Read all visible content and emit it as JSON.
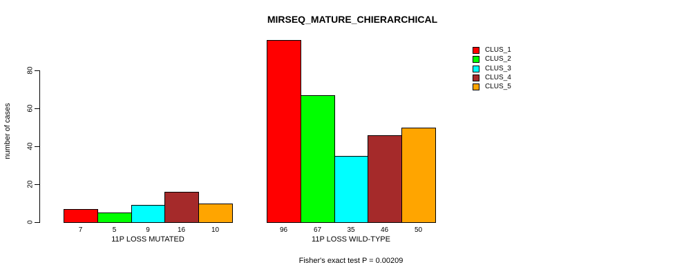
{
  "chart_data": {
    "type": "bar",
    "title": "MIRSEQ_MATURE_CHIERARCHICAL",
    "ylabel": "number of cases",
    "xlabel": "",
    "footer": "Fisher's exact test P = 0.00209",
    "yticks": [
      0,
      20,
      40,
      60,
      80
    ],
    "axis_range": [
      0,
      80
    ],
    "grid": false,
    "legend_position": "top-right",
    "series": [
      {
        "name": "CLUS_1",
        "color": "#ff0000"
      },
      {
        "name": "CLUS_2",
        "color": "#00ff00"
      },
      {
        "name": "CLUS_3",
        "color": "#00ffff"
      },
      {
        "name": "CLUS_4",
        "color": "#a52a2a"
      },
      {
        "name": "CLUS_5",
        "color": "#ffa500"
      }
    ],
    "groups": [
      {
        "label": "11P LOSS MUTATED",
        "values": [
          7,
          5,
          9,
          16,
          10
        ]
      },
      {
        "label": "11P LOSS WILD-TYPE",
        "values": [
          96,
          67,
          35,
          46,
          50
        ]
      }
    ],
    "show_value_labels": true
  }
}
